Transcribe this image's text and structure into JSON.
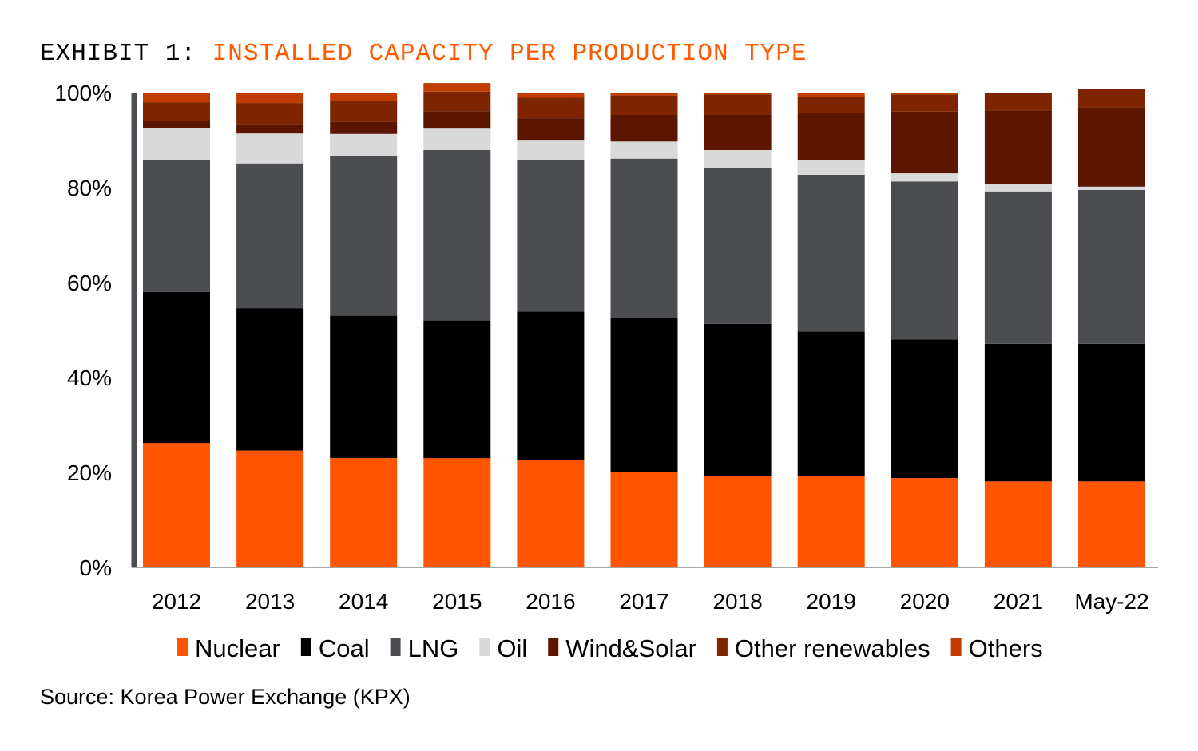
{
  "header": {
    "prefix": "EXHIBIT 1:",
    "title": "INSTALLED CAPACITY PER PRODUCTION TYPE"
  },
  "footer": {
    "source": "Source: Korea Power Exchange (KPX)"
  },
  "colors": {
    "title_accent": "#ff5a00",
    "axis": "#4a4d52"
  },
  "chart_data": {
    "type": "bar",
    "stacked": true,
    "percent": true,
    "title": "INSTALLED CAPACITY PER PRODUCTION TYPE",
    "xlabel": "",
    "ylabel": "",
    "ylim": [
      0,
      100
    ],
    "yticks": [
      "0%",
      "20%",
      "40%",
      "60%",
      "80%",
      "100%"
    ],
    "legend_position": "bottom",
    "grid": false,
    "categories": [
      "2012",
      "2013",
      "2014",
      "2015",
      "2016",
      "2017",
      "2018",
      "2019",
      "2020",
      "2021",
      "May-22"
    ],
    "series": [
      {
        "name": "Nuclear",
        "color": "#ff5500",
        "values": [
          26.2,
          24.6,
          23.0,
          23.0,
          22.6,
          20.0,
          19.2,
          19.3,
          18.8,
          18.1,
          18.1
        ]
      },
      {
        "name": "Coal",
        "color": "#000000",
        "values": [
          31.8,
          30.0,
          30.0,
          29.0,
          31.3,
          32.5,
          32.1,
          30.4,
          29.2,
          29.0,
          29.0
        ]
      },
      {
        "name": "LNG",
        "color": "#4b4d51",
        "values": [
          27.8,
          30.5,
          33.6,
          35.9,
          32.0,
          33.6,
          32.9,
          33.0,
          33.3,
          32.1,
          32.4
        ]
      },
      {
        "name": "Oil",
        "color": "#d9d9d9",
        "values": [
          6.7,
          6.3,
          4.7,
          4.5,
          4.0,
          3.6,
          3.7,
          3.1,
          1.7,
          1.6,
          0.7
        ]
      },
      {
        "name": "Wind&Solar",
        "color": "#5c1600",
        "values": [
          1.5,
          2.0,
          2.6,
          3.7,
          4.7,
          5.6,
          7.5,
          10.0,
          13.0,
          15.4,
          16.7
        ]
      },
      {
        "name": "Other renewables",
        "color": "#7e2400",
        "values": [
          3.9,
          4.4,
          4.4,
          4.1,
          4.3,
          4.1,
          4.2,
          3.3,
          3.6,
          3.8,
          3.8
        ]
      },
      {
        "name": "Others",
        "color": "#c03c00",
        "values": [
          2.1,
          2.2,
          1.7,
          1.8,
          1.1,
          0.6,
          0.4,
          0.9,
          0.4,
          0.0,
          -0.7
        ]
      }
    ]
  }
}
